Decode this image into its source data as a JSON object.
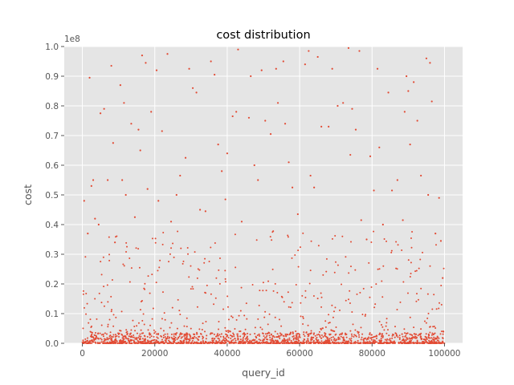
{
  "chart_data": {
    "type": "scatter",
    "title": "cost distribution",
    "xlabel": "query_id",
    "ylabel": "cost",
    "y_offset_label": "1e8",
    "xlim": [
      -5000,
      105000
    ],
    "ylim": [
      0,
      100000000
    ],
    "x_ticks": [
      0,
      20000,
      40000,
      60000,
      80000,
      100000
    ],
    "x_tick_labels": [
      "0",
      "20000",
      "40000",
      "60000",
      "80000",
      "100000"
    ],
    "y_ticks": [
      0,
      10000000,
      20000000,
      30000000,
      40000000,
      50000000,
      60000000,
      70000000,
      80000000,
      90000000,
      100000000
    ],
    "y_tick_labels": [
      "0.0",
      "0.1",
      "0.2",
      "0.3",
      "0.4",
      "0.5",
      "0.6",
      "0.7",
      "0.8",
      "0.9",
      "1.0"
    ],
    "grid": true,
    "marker_color": "#E24A33",
    "background_color": "#E5E5E5",
    "grid_color": "#FFFFFF",
    "x_range": [
      0,
      100000
    ],
    "series": [
      {
        "points": [
          [
            500,
            48000000
          ],
          [
            1500,
            37000000
          ],
          [
            2000,
            89500000
          ],
          [
            2500,
            53000000
          ],
          [
            3000,
            55000000
          ],
          [
            3500,
            42000000
          ],
          [
            4500,
            40000000
          ],
          [
            5000,
            77500000
          ],
          [
            6000,
            79000000
          ],
          [
            7000,
            55000000
          ],
          [
            8000,
            93500000
          ],
          [
            8500,
            67500000
          ],
          [
            9000,
            34000000
          ],
          [
            10500,
            87000000
          ],
          [
            11000,
            55000000
          ],
          [
            11500,
            81000000
          ],
          [
            12000,
            50000000
          ],
          [
            13500,
            74000000
          ],
          [
            14500,
            42500000
          ],
          [
            15500,
            72000000
          ],
          [
            16500,
            97000000
          ],
          [
            16000,
            65000000
          ],
          [
            17500,
            94500000
          ],
          [
            18000,
            52000000
          ],
          [
            19000,
            78000000
          ],
          [
            20500,
            92000000
          ],
          [
            21000,
            48000000
          ],
          [
            22000,
            71500000
          ],
          [
            23500,
            97500000
          ],
          [
            24500,
            41000000
          ],
          [
            26000,
            50000000
          ],
          [
            27000,
            56500000
          ],
          [
            28500,
            62500000
          ],
          [
            29500,
            92500000
          ],
          [
            30500,
            86000000
          ],
          [
            31500,
            84500000
          ],
          [
            32500,
            45000000
          ],
          [
            34000,
            44500000
          ],
          [
            35500,
            95000000
          ],
          [
            36500,
            90500000
          ],
          [
            37500,
            67000000
          ],
          [
            38500,
            58000000
          ],
          [
            39500,
            48500000
          ],
          [
            40000,
            64000000
          ],
          [
            41500,
            76500000
          ],
          [
            42500,
            78000000
          ],
          [
            43000,
            99000000
          ],
          [
            44000,
            41000000
          ],
          [
            46000,
            76000000
          ],
          [
            46500,
            90000000
          ],
          [
            47500,
            60000000
          ],
          [
            48500,
            55000000
          ],
          [
            49500,
            92000000
          ],
          [
            50500,
            75000000
          ],
          [
            52000,
            70500000
          ],
          [
            53500,
            92500000
          ],
          [
            54000,
            81000000
          ],
          [
            55500,
            95000000
          ],
          [
            56000,
            74000000
          ],
          [
            57000,
            61000000
          ],
          [
            58000,
            52500000
          ],
          [
            59500,
            43500000
          ],
          [
            61500,
            94000000
          ],
          [
            62500,
            98500000
          ],
          [
            63000,
            56500000
          ],
          [
            64000,
            52500000
          ],
          [
            65000,
            96500000
          ],
          [
            66000,
            73000000
          ],
          [
            68000,
            73000000
          ],
          [
            69000,
            92500000
          ],
          [
            70500,
            80000000
          ],
          [
            72000,
            81000000
          ],
          [
            73500,
            99500000
          ],
          [
            74000,
            63500000
          ],
          [
            74500,
            79000000
          ],
          [
            75500,
            72000000
          ],
          [
            76500,
            98500000
          ],
          [
            77000,
            41500000
          ],
          [
            78500,
            35000000
          ],
          [
            79500,
            63000000
          ],
          [
            80500,
            51500000
          ],
          [
            81500,
            92500000
          ],
          [
            82000,
            66000000
          ],
          [
            83000,
            40000000
          ],
          [
            84500,
            84500000
          ],
          [
            85500,
            51500000
          ],
          [
            87000,
            55000000
          ],
          [
            88500,
            41500000
          ],
          [
            89000,
            78000000
          ],
          [
            89500,
            90000000
          ],
          [
            90000,
            85000000
          ],
          [
            90500,
            67000000
          ],
          [
            91500,
            88000000
          ],
          [
            92500,
            75000000
          ],
          [
            93500,
            56500000
          ],
          [
            95000,
            96000000
          ],
          [
            95500,
            50000000
          ],
          [
            96000,
            94500000
          ],
          [
            96500,
            81500000
          ],
          [
            97500,
            37000000
          ],
          [
            98500,
            49000000
          ],
          [
            99000,
            34500000
          ],
          [
            99500,
            22000000
          ]
        ]
      }
    ]
  }
}
